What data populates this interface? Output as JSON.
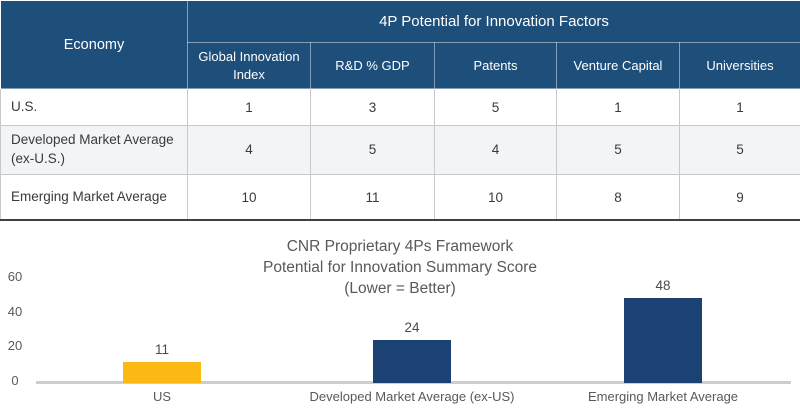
{
  "table": {
    "corner_label": "Economy",
    "group_header": "4P Potential for Innovation Factors",
    "columns": [
      "Global Innovation Index",
      "R&D % GDP",
      "Patents",
      "Venture Capital",
      "Universities"
    ],
    "rows": [
      {
        "label": "U.S.",
        "values": [
          1,
          3,
          5,
          1,
          1
        ]
      },
      {
        "label": "Developed Market Average (ex-U.S.)",
        "values": [
          4,
          5,
          4,
          5,
          5
        ]
      },
      {
        "label": "Emerging Market Average",
        "values": [
          10,
          11,
          10,
          8,
          9
        ]
      }
    ]
  },
  "chart_data": {
    "type": "bar",
    "title": "CNR Proprietary 4Ps Framework\nPotential for Innovation  Summary Score\n(Lower = Better)",
    "categories": [
      "US",
      "Developed Market Average (ex-US)",
      "Emerging Market Average"
    ],
    "values": [
      11,
      24,
      48
    ],
    "bar_colors": [
      "#FDB913",
      "#1B4273",
      "#1B4273"
    ],
    "yticks": [
      0,
      20,
      40,
      60
    ],
    "ylim": [
      0,
      60
    ],
    "xlabel": "",
    "ylabel": "",
    "grid": false,
    "legend": false,
    "value_labels": true
  },
  "colors": {
    "table_header_bg": "#1E4E7A",
    "table_header_text": "#FFFFFF",
    "row_alt_bg": "#F3F4F6",
    "bar_gold": "#FDB913",
    "bar_navy": "#1B4273",
    "axis_line": "#C9CED4",
    "chart_text": "#595959"
  }
}
